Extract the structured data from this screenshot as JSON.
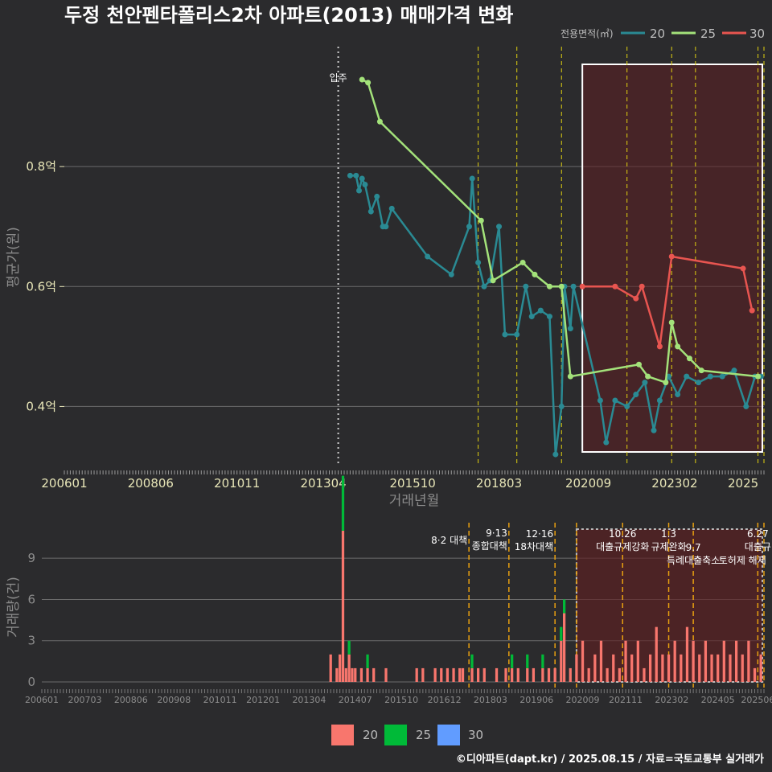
{
  "title": "두정 천안펜타폴리스2차 아파트(2013) 매매가격 변화",
  "footer": "©디아파트(dapt.kr) / 2025.08.15 / 자료=국토교통부 실거래가",
  "colors": {
    "s20": "#2a8a93",
    "s25": "#a3e27a",
    "s30": "#e85550",
    "b20": "#f8766d",
    "b25": "#00ba38",
    "b30": "#619cff"
  },
  "chart_data": [
    {
      "type": "line",
      "title": "두정 천안펜타폴리스2차 아파트(2013) 매매가격 변화",
      "xlabel": "거래년월",
      "ylabel": "평균가(원)",
      "xlim": [
        "2006-01",
        "2025-08"
      ],
      "ylim": [
        0.3,
        1.0
      ],
      "y_ticks": [
        {
          "value": 0.4,
          "label": "0.4억"
        },
        {
          "value": 0.6,
          "label": "0.6억"
        },
        {
          "value": 0.8,
          "label": "0.8억"
        }
      ],
      "x_ticks": [
        "200601",
        "200806",
        "201011",
        "201304",
        "201510",
        "201803",
        "202009",
        "202302",
        "2025"
      ],
      "legend": {
        "title": "전용면적(㎡)",
        "position": "top-right",
        "items": [
          "20",
          "25",
          "30"
        ]
      },
      "movein": {
        "x": "2013-09",
        "label": "입주"
      },
      "policy_lines": [
        "2017-08",
        "2018-09",
        "2019-12",
        "2021-10",
        "2023-01",
        "2023-09",
        "2025-06",
        "2025-08"
      ],
      "highlight": {
        "from": "2020-07",
        "to": "2025-08"
      },
      "series": [
        {
          "name": "20",
          "points": [
            [
              "2014-01",
              0.785
            ],
            [
              "2014-03",
              0.785
            ],
            [
              "2014-04",
              0.76
            ],
            [
              "2014-05",
              0.78
            ],
            [
              "2014-06",
              0.77
            ],
            [
              "2014-08",
              0.725
            ],
            [
              "2014-10",
              0.75
            ],
            [
              "2014-12",
              0.7
            ],
            [
              "2015-01",
              0.7
            ],
            [
              "2015-03",
              0.73
            ],
            [
              "2016-03",
              0.65
            ],
            [
              "2016-11",
              0.62
            ],
            [
              "2017-05",
              0.7
            ],
            [
              "2017-06",
              0.78
            ],
            [
              "2017-08",
              0.64
            ],
            [
              "2017-10",
              0.6
            ],
            [
              "2017-12",
              0.61
            ],
            [
              "2018-03",
              0.7
            ],
            [
              "2018-05",
              0.52
            ],
            [
              "2018-09",
              0.52
            ],
            [
              "2018-12",
              0.6
            ],
            [
              "2019-02",
              0.55
            ],
            [
              "2019-05",
              0.56
            ],
            [
              "2019-08",
              0.55
            ],
            [
              "2019-10",
              0.32
            ],
            [
              "2019-12",
              0.4
            ],
            [
              "2020-01",
              0.6
            ],
            [
              "2020-03",
              0.53
            ],
            [
              "2020-04",
              0.6
            ],
            [
              "2021-01",
              0.41
            ],
            [
              "2021-03",
              0.34
            ],
            [
              "2021-06",
              0.41
            ],
            [
              "2021-10",
              0.4
            ],
            [
              "2022-01",
              0.42
            ],
            [
              "2022-04",
              0.44
            ],
            [
              "2022-07",
              0.36
            ],
            [
              "2022-09",
              0.41
            ],
            [
              "2022-12",
              0.45
            ],
            [
              "2023-03",
              0.42
            ],
            [
              "2023-06",
              0.45
            ],
            [
              "2023-10",
              0.44
            ],
            [
              "2024-02",
              0.45
            ],
            [
              "2024-06",
              0.45
            ],
            [
              "2024-10",
              0.46
            ],
            [
              "2025-02",
              0.4
            ],
            [
              "2025-05",
              0.45
            ],
            [
              "2025-07",
              0.45
            ]
          ]
        },
        {
          "name": "25",
          "points": [
            [
              "2014-05",
              0.945
            ],
            [
              "2014-07",
              0.94
            ],
            [
              "2014-11",
              0.875
            ],
            [
              "2017-09",
              0.71
            ],
            [
              "2018-01",
              0.61
            ],
            [
              "2018-11",
              0.64
            ],
            [
              "2019-03",
              0.62
            ],
            [
              "2019-08",
              0.6
            ],
            [
              "2019-12",
              0.6
            ],
            [
              "2020-03",
              0.45
            ],
            [
              "2022-02",
              0.47
            ],
            [
              "2022-05",
              0.45
            ],
            [
              "2022-11",
              0.44
            ],
            [
              "2023-01",
              0.54
            ],
            [
              "2023-03",
              0.5
            ],
            [
              "2023-07",
              0.48
            ],
            [
              "2023-11",
              0.46
            ],
            [
              "2025-06",
              0.45
            ]
          ]
        },
        {
          "name": "30",
          "points": [
            [
              "2020-07",
              0.6
            ],
            [
              "2021-06",
              0.6
            ],
            [
              "2022-01",
              0.58
            ],
            [
              "2022-03",
              0.6
            ],
            [
              "2022-09",
              0.5
            ],
            [
              "2023-01",
              0.65
            ],
            [
              "2025-01",
              0.63
            ],
            [
              "2025-04",
              0.56
            ]
          ]
        }
      ]
    },
    {
      "type": "bar",
      "ylabel": "거래량(건)",
      "ylim": [
        0,
        11
      ],
      "y_ticks": [
        0,
        3,
        6,
        9
      ],
      "x_ticks": [
        "200601",
        "200703",
        "200806",
        "200908",
        "201011",
        "201201",
        "201304",
        "201407",
        "201510",
        "201612",
        "201803",
        "201906",
        "202009",
        "202111",
        "202302",
        "202405",
        "202506"
      ],
      "legend": {
        "position": "bottom",
        "items": [
          "20",
          "25",
          "30"
        ]
      },
      "policy_lines": [
        "2017-08",
        "2018-09",
        "2019-12",
        "2020-07",
        "2021-10",
        "2023-01",
        "2023-09",
        "2025-06",
        "2025-08"
      ],
      "annotations": [
        {
          "x": "2017-08",
          "lines": [
            "8·2 대책"
          ]
        },
        {
          "x": "2018-09",
          "lines": [
            "9·13",
            "종합대책"
          ]
        },
        {
          "x": "2019-12",
          "lines": [
            "12·16",
            "18차대책"
          ]
        },
        {
          "x": "2021-10",
          "lines": [
            "10.26",
            "대출규제강화"
          ]
        },
        {
          "x": "2023-01",
          "lines": [
            "1.3",
            "규제완화"
          ]
        },
        {
          "x": "2023-09",
          "lines": [
            "9.7",
            "특례대출축소"
          ]
        },
        {
          "x": "2025-06",
          "lines": [
            "6.27",
            "대출규"
          ]
        },
        {
          "x": "2025-01",
          "lines": [
            "",
            "토허제 해제"
          ]
        }
      ],
      "highlight": {
        "from": "2020-07",
        "to": "2025-08"
      },
      "bars": [
        [
          "2013-11",
          2,
          0,
          0
        ],
        [
          "2014-01",
          1,
          0,
          0
        ],
        [
          "2014-02",
          2,
          0,
          0
        ],
        [
          "2014-03",
          11,
          4,
          0
        ],
        [
          "2014-04",
          1,
          0,
          0
        ],
        [
          "2014-05",
          2,
          1,
          0
        ],
        [
          "2014-06",
          1,
          0,
          0
        ],
        [
          "2014-07",
          1,
          0,
          0
        ],
        [
          "2014-09",
          1,
          0,
          0
        ],
        [
          "2014-11",
          1,
          1,
          0
        ],
        [
          "2015-01",
          1,
          0,
          0
        ],
        [
          "2015-05",
          1,
          0,
          0
        ],
        [
          "2016-03",
          1,
          0,
          0
        ],
        [
          "2016-05",
          1,
          0,
          0
        ],
        [
          "2016-09",
          1,
          0,
          0
        ],
        [
          "2016-11",
          1,
          0,
          0
        ],
        [
          "2017-01",
          1,
          0,
          0
        ],
        [
          "2017-03",
          1,
          0,
          0
        ],
        [
          "2017-05",
          1,
          0,
          0
        ],
        [
          "2017-06",
          1,
          0,
          0
        ],
        [
          "2017-09",
          1,
          1,
          0
        ],
        [
          "2017-11",
          1,
          0,
          0
        ],
        [
          "2018-01",
          1,
          0,
          0
        ],
        [
          "2018-05",
          1,
          0,
          0
        ],
        [
          "2018-08",
          1,
          0,
          0
        ],
        [
          "2018-10",
          1,
          1,
          0
        ],
        [
          "2018-12",
          1,
          0,
          0
        ],
        [
          "2019-03",
          1,
          1,
          0
        ],
        [
          "2019-05",
          1,
          0,
          0
        ],
        [
          "2019-08",
          1,
          1,
          0
        ],
        [
          "2019-10",
          1,
          0,
          0
        ],
        [
          "2019-12",
          1,
          0,
          0
        ],
        [
          "2020-02",
          3,
          1,
          0
        ],
        [
          "2020-03",
          5,
          1,
          0
        ],
        [
          "2020-05",
          1,
          0,
          0
        ],
        [
          "2020-07",
          2,
          0,
          0
        ],
        [
          "2020-09",
          3,
          0,
          0
        ],
        [
          "2020-11",
          1,
          0,
          0
        ],
        [
          "2021-01",
          2,
          0,
          0
        ],
        [
          "2021-03",
          3,
          0,
          0
        ],
        [
          "2021-05",
          1,
          0,
          0
        ],
        [
          "2021-07",
          2,
          0,
          0
        ],
        [
          "2021-09",
          1,
          0,
          0
        ],
        [
          "2021-11",
          3,
          0,
          0
        ],
        [
          "2022-01",
          2,
          0,
          0
        ],
        [
          "2022-03",
          3,
          0,
          0
        ],
        [
          "2022-05",
          1,
          0,
          0
        ],
        [
          "2022-07",
          2,
          0,
          0
        ],
        [
          "2022-09",
          4,
          0,
          0
        ],
        [
          "2022-11",
          2,
          0,
          0
        ],
        [
          "2023-01",
          2,
          0,
          0
        ],
        [
          "2023-03",
          3,
          0,
          0
        ],
        [
          "2023-05",
          2,
          0,
          0
        ],
        [
          "2023-07",
          4,
          0,
          0
        ],
        [
          "2023-09",
          3,
          0,
          0
        ],
        [
          "2023-11",
          2,
          0,
          0
        ],
        [
          "2024-01",
          3,
          0,
          0
        ],
        [
          "2024-03",
          2,
          0,
          0
        ],
        [
          "2024-05",
          2,
          0,
          0
        ],
        [
          "2024-07",
          3,
          0,
          0
        ],
        [
          "2024-09",
          2,
          0,
          0
        ],
        [
          "2024-11",
          3,
          0,
          0
        ],
        [
          "2025-01",
          2,
          0,
          0
        ],
        [
          "2025-03",
          3,
          0,
          0
        ],
        [
          "2025-05",
          1,
          0,
          0
        ],
        [
          "2025-07",
          2,
          0,
          0
        ]
      ]
    }
  ]
}
